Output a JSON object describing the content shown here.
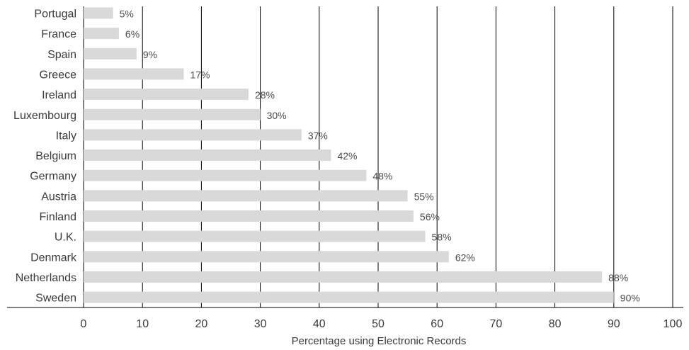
{
  "chart_data": {
    "type": "bar",
    "orientation": "horizontal",
    "categories": [
      "Portugal",
      "France",
      "Spain",
      "Greece",
      "Ireland",
      "Luxembourg",
      "Italy",
      "Belgium",
      "Germany",
      "Austria",
      "Finland",
      "U.K.",
      "Denmark",
      "Netherlands",
      "Sweden"
    ],
    "values": [
      5,
      6,
      9,
      17,
      28,
      30,
      37,
      42,
      48,
      55,
      56,
      58,
      62,
      88,
      90
    ],
    "value_labels": [
      "5%",
      "6%",
      "9%",
      "17%",
      "28%",
      "30%",
      "37%",
      "42%",
      "48%",
      "55%",
      "56%",
      "58%",
      "62%",
      "88%",
      "90%"
    ],
    "title": "",
    "xlabel": "Percentage using Electronic Records",
    "ylabel": "",
    "xlim": [
      0,
      100
    ],
    "xticks": [
      "0",
      "10",
      "20",
      "30",
      "40",
      "50",
      "60",
      "70",
      "80",
      "90",
      "100"
    ],
    "grid": "vertical",
    "bar_color": "#d9d9d9",
    "grid_color": "#000000"
  }
}
